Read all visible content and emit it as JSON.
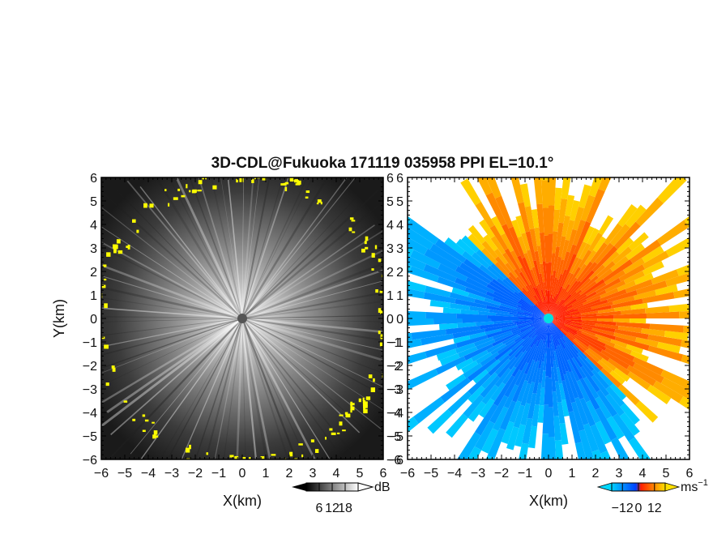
{
  "chart_data": [
    {
      "type": "heatmap",
      "title": "3D-CDL@Fukuoka 171119 035958 PPI EL=10.1°",
      "xlabel": "X(km)",
      "ylabel": "Y(km)",
      "xlim": [
        -6,
        6
      ],
      "ylim": [
        -6,
        6
      ],
      "xticks": [
        "-6",
        "-5",
        "-4",
        "-3",
        "-2",
        "-1",
        "0",
        "1",
        "2",
        "3",
        "4",
        "5",
        "6"
      ],
      "yticks": [
        "6",
        "5",
        "4",
        "3",
        "2",
        "1",
        "0",
        "-1",
        "-2",
        "-3",
        "-4",
        "-5",
        "-6"
      ],
      "colorbar": {
        "unit": "dB",
        "ticks": [
          "6",
          "12",
          "18"
        ],
        "range": [
          0,
          24
        ]
      },
      "colors": {
        "low": "#000000",
        "high": "#ffffff",
        "highlight": "#ffff00"
      }
    },
    {
      "type": "heatmap",
      "xlabel": "X(km)",
      "xlim": [
        -6,
        6
      ],
      "ylim": [
        -6,
        6
      ],
      "xticks": [
        "-6",
        "-5",
        "-4",
        "-3",
        "-2",
        "-1",
        "0",
        "1",
        "2",
        "3",
        "4",
        "5",
        "6"
      ],
      "yticks": [
        "6",
        "5",
        "4",
        "3",
        "2",
        "1",
        "0",
        "-1",
        "-2",
        "-3",
        "-4",
        "-5",
        "-6"
      ],
      "colorbar": {
        "unit": "ms",
        "unit_exp": "−1",
        "ticks": [
          "−12",
          "0",
          "12"
        ],
        "range": [
          -20,
          20
        ]
      },
      "colors": {
        "negative_far": "#00c8ff",
        "negative": "#0050ff",
        "positive": "#ff2000",
        "positive_far": "#ffd000",
        "center": "#00e0e0"
      }
    }
  ]
}
